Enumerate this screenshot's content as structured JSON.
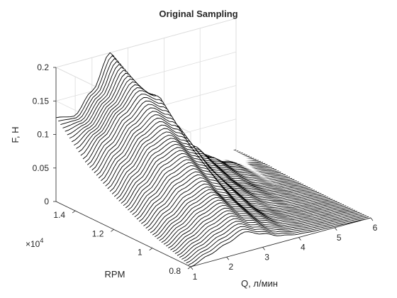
{
  "chart_data": {
    "type": "surface",
    "title": "Original Sampling",
    "xlabel": "Q, л/мин",
    "ylabel": "RPM",
    "zlabel": "F, H",
    "y_exponent_label": "×10",
    "y_exponent_power": "4",
    "xlim": [
      1,
      6
    ],
    "ylim": [
      8000,
      15000
    ],
    "zlim": [
      0,
      0.2
    ],
    "x_ticks": [
      "1",
      "2",
      "3",
      "4",
      "5",
      "6"
    ],
    "y_ticks": [
      "0.8",
      "1",
      "1.2",
      "1.4"
    ],
    "z_ticks": [
      "0",
      "0.05",
      "0.1",
      "0.15",
      "0.2"
    ],
    "grid": true,
    "style": "mesh, lines of constant RPM, white faces",
    "x": [
      1,
      1.5,
      2,
      2.5,
      3,
      3.5,
      4,
      4.5,
      5,
      5.5,
      6
    ],
    "rpm_samples": [
      {
        "rpm": 8000,
        "F": [
          0,
          0.01,
          0.02,
          0.03,
          0.02,
          0.01,
          0.005,
          0.003,
          0.002,
          0.001,
          0
        ]
      },
      {
        "rpm": 10000,
        "F": [
          0.02,
          0.04,
          0.06,
          0.07,
          0.05,
          0.03,
          0.015,
          0.008,
          0.004,
          0.002,
          0
        ]
      },
      {
        "rpm": 12000,
        "F": [
          0.05,
          0.08,
          0.11,
          0.12,
          0.1,
          0.06,
          0.035,
          0.02,
          0.01,
          0.005,
          0.002
        ]
      },
      {
        "rpm": 13500,
        "F": [
          0.08,
          0.11,
          0.14,
          0.165,
          0.15,
          0.1,
          0.06,
          0.035,
          0.02,
          0.01,
          0.005
        ]
      },
      {
        "rpm": 15000,
        "F": [
          0.125,
          0.12,
          0.15,
          0.2,
          0.14,
          0.09,
          0.05,
          0.03,
          0.015,
          0.008,
          0.004
        ]
      }
    ]
  }
}
